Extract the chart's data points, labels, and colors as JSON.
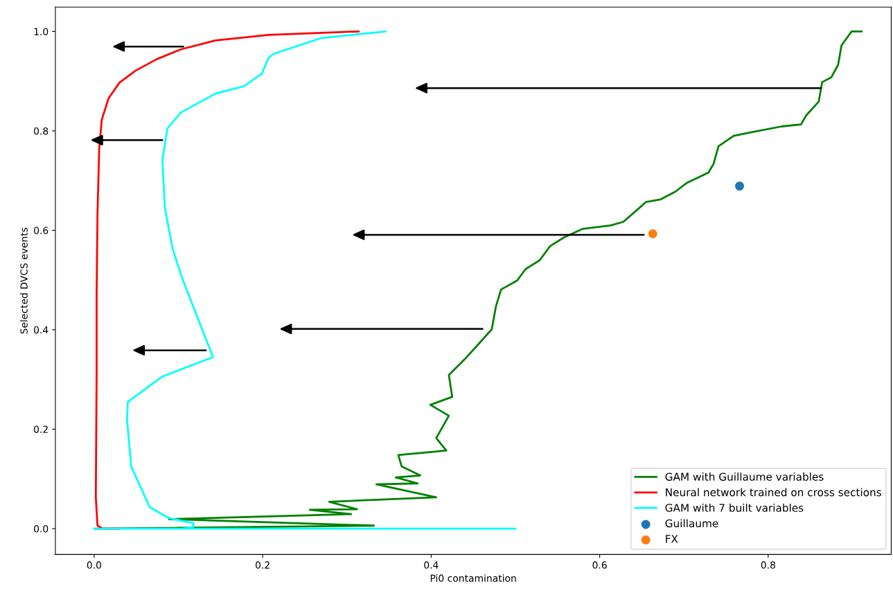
{
  "chart_data": {
    "type": "line",
    "xlabel": "Pi0 contamination",
    "ylabel": "Selected DVCS events",
    "xlim": [
      -0.046,
      0.946
    ],
    "ylim": [
      -0.052,
      1.049
    ],
    "xticks": [
      {
        "value": 0,
        "label": "0.0"
      },
      0.2,
      0.4,
      0.6,
      0.8
    ],
    "yticks": [
      {
        "value": 0,
        "label": "0.0"
      },
      0.2,
      0.4,
      0.6,
      0.8,
      {
        "value": 1,
        "label": "1.0"
      }
    ],
    "grid": false,
    "legend": "bottom right",
    "series": [
      {
        "name": "GAM with Guillaume variables",
        "color": "#008000",
        "x": [
          0.911,
          0.899,
          0.887,
          0.883,
          0.875,
          0.864,
          0.86,
          0.845,
          0.839,
          0.816,
          0.779,
          0.759,
          0.741,
          0.735,
          0.729,
          0.703,
          0.69,
          0.672,
          0.655,
          0.645,
          0.628,
          0.613,
          0.58,
          0.558,
          0.541,
          0.529,
          0.512,
          0.502,
          0.483,
          0.477,
          0.472,
          0.455,
          0.44,
          0.421,
          0.425,
          0.399,
          0.421,
          0.406,
          0.418,
          0.361,
          0.365,
          0.387,
          0.358,
          0.384,
          0.335,
          0.406,
          0.279,
          0.312,
          0.256,
          0.305,
          0.089,
          0.332,
          0.002
        ],
        "values": [
          1.0,
          1.0,
          0.972,
          0.933,
          0.908,
          0.898,
          0.859,
          0.831,
          0.813,
          0.809,
          0.797,
          0.79,
          0.769,
          0.733,
          0.716,
          0.695,
          0.678,
          0.662,
          0.657,
          0.642,
          0.617,
          0.61,
          0.603,
          0.586,
          0.568,
          0.54,
          0.522,
          0.499,
          0.481,
          0.448,
          0.401,
          0.369,
          0.341,
          0.309,
          0.265,
          0.249,
          0.227,
          0.182,
          0.157,
          0.148,
          0.125,
          0.107,
          0.103,
          0.091,
          0.089,
          0.063,
          0.054,
          0.039,
          0.038,
          0.029,
          0.019,
          0.006,
          0.0
        ]
      },
      {
        "name": "Neural network trained on cross sections",
        "color": "#ff0000",
        "x": [
          0.03,
          0.01,
          0.004,
          0.002,
          0.003,
          0.003,
          0.004,
          0.006,
          0.009,
          0.017,
          0.03,
          0.049,
          0.074,
          0.103,
          0.144,
          0.207,
          0.314
        ],
        "values": [
          0.0,
          0.0,
          0.006,
          0.063,
          0.316,
          0.476,
          0.634,
          0.763,
          0.822,
          0.865,
          0.897,
          0.921,
          0.944,
          0.964,
          0.982,
          0.993,
          1.0
        ]
      },
      {
        "name": "GAM with 7 built variables",
        "color": "#00ffff",
        "x": [
          0.346,
          0.27,
          0.213,
          0.207,
          0.199,
          0.178,
          0.144,
          0.103,
          0.087,
          0.081,
          0.084,
          0.093,
          0.104,
          0.141,
          0.081,
          0.04,
          0.039,
          0.044,
          0.066,
          0.089,
          0.118,
          0.117,
          0.104,
          0.5,
          0.0
        ],
        "values": [
          1.0,
          0.987,
          0.955,
          0.947,
          0.915,
          0.89,
          0.875,
          0.837,
          0.805,
          0.741,
          0.645,
          0.564,
          0.506,
          0.345,
          0.306,
          0.255,
          0.22,
          0.125,
          0.043,
          0.021,
          0.011,
          0.003,
          0.0,
          0.0,
          0.0
        ]
      },
      {
        "name": "Guillaume",
        "type": "scatter",
        "marker": "circle",
        "color": "#1f77b4",
        "x": [
          0.766
        ],
        "values": [
          0.689
        ]
      },
      {
        "name": "FX",
        "type": "scatter",
        "marker": "circle",
        "color": "#ff7f0e",
        "x": [
          0.663
        ],
        "values": [
          0.593
        ]
      }
    ]
  }
}
